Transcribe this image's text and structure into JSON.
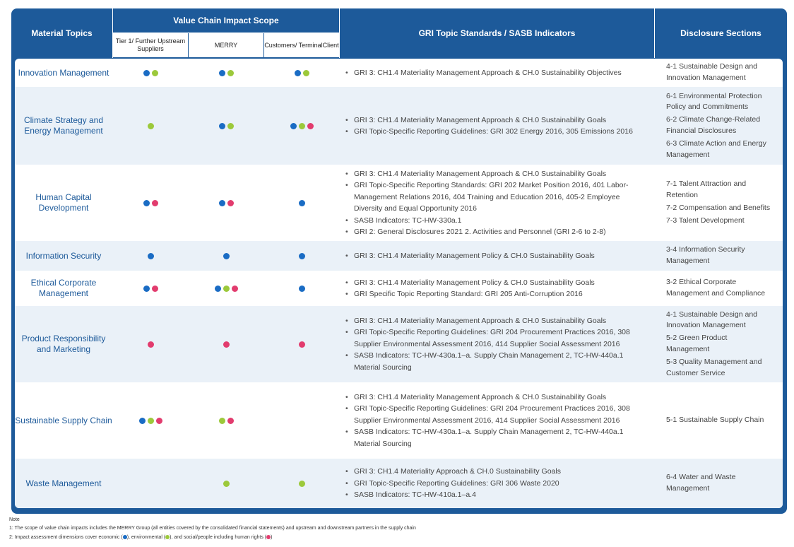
{
  "header": {
    "material_topics": "Material Topics",
    "value_chain": "Value Chain Impact Scope",
    "col_upstream": "Tier 1/ Further Upstream Suppliers",
    "col_merry": "MERRY",
    "col_customers": "Customers/ TerminalClient",
    "gri": "GRI Topic Standards / SASB Indicators",
    "disclosure": "Disclosure Sections"
  },
  "colors": {
    "blue": "#1a6cc4",
    "green": "#9cc93b",
    "red": "#e23c6e",
    "frame": "#1d5a9a"
  },
  "rows": [
    {
      "topic": "Innovation Management",
      "upstream": [
        "blue",
        "green"
      ],
      "merry": [
        "blue",
        "green"
      ],
      "customers": [
        "blue",
        "green"
      ],
      "gri": [
        "GRI 3: CH1.4 Materiality Management Approach & CH.0 Sustainability Objectives"
      ],
      "disclosure": [
        "4-1 Sustainable Design and Innovation Management"
      ]
    },
    {
      "topic": "Climate Strategy and Energy Management",
      "upstream": [
        "green"
      ],
      "merry": [
        "blue",
        "green"
      ],
      "customers": [
        "blue",
        "green",
        "red"
      ],
      "gri": [
        "GRI 3: CH1.4 Materiality Management Approach & CH.0 Sustainability Goals",
        "GRI Topic-Specific Reporting Guidelines: GRI 302 Energy 2016, 305 Emissions 2016"
      ],
      "disclosure": [
        "6-1 Environmental Protection Policy and Commitments",
        "6-2 Climate Change-Related Financial Disclosures",
        "6-3 Climate Action and Energy Management"
      ]
    },
    {
      "topic": "Human Capital Development",
      "upstream": [
        "blue",
        "red"
      ],
      "merry": [
        "blue",
        "red"
      ],
      "customers": [
        "blue"
      ],
      "gri": [
        "GRI 3: CH1.4 Materiality Management Approach & CH.0 Sustainability Goals",
        "GRI Topic-Specific Reporting Standards: GRI 202 Market Position 2016, 401 Labor-Management Relations 2016, 404 Training and Education 2016, 405-2 Employee Diversity and Equal Opportunity 2016",
        "SASB Indicators: TC-HW-330a.1",
        "GRI 2: General Disclosures 2021 2. Activities and Personnel (GRI 2-6 to 2-8)"
      ],
      "disclosure": [
        "7-1 Talent Attraction and Retention",
        "7-2 Compensation and Benefits",
        "7-3 Talent Development"
      ]
    },
    {
      "topic": "Information Security",
      "upstream": [
        "blue"
      ],
      "merry": [
        "blue"
      ],
      "customers": [
        "blue"
      ],
      "gri": [
        "GRI 3: CH1.4 Materiality Management Policy & CH.0 Sustainability Goals"
      ],
      "disclosure": [
        "3-4 Information Security Management"
      ]
    },
    {
      "topic": "Ethical Corporate Management",
      "upstream": [
        "blue",
        "red"
      ],
      "merry": [
        "blue",
        "green",
        "red"
      ],
      "customers": [
        "blue"
      ],
      "gri": [
        "GRI 3: CH1.4 Materiality Management Policy & CH.0 Sustainability Goals",
        "GRI Specific Topic Reporting Standard: GRI 205 Anti-Corruption 2016"
      ],
      "disclosure": [
        "3-2 Ethical Corporate Management and Compliance"
      ]
    },
    {
      "topic": "Product Responsibility and Marketing",
      "upstream": [
        "red"
      ],
      "merry": [
        "red"
      ],
      "customers": [
        "red"
      ],
      "gri": [
        "GRI 3: CH1.4 Materiality Management Approach & CH.0 Sustainability Goals",
        "GRI Topic-Specific Reporting Guidelines: GRI 204 Procurement Practices 2016, 308 Supplier Environmental Assessment 2016, 414 Supplier Social Assessment 2016",
        "SASB Indicators: TC-HW-430a.1–a. Supply Chain Management 2, TC-HW-440a.1 Material Sourcing"
      ],
      "disclosure": [
        "4-1 Sustainable Design and Innovation Management",
        "5-2 Green Product Management",
        "5-3 Quality Management and Customer Service"
      ]
    },
    {
      "topic": "Sustainable Supply Chain",
      "upstream": [
        "blue",
        "green",
        "red"
      ],
      "merry": [
        "green",
        "red"
      ],
      "customers": [],
      "gri": [
        "GRI 3: CH1.4 Materiality Management Approach & CH.0 Sustainability Goals",
        "GRI Topic-Specific Reporting Guidelines: GRI 204 Procurement Practices 2016, 308 Supplier Environmental Assessment 2016, 414 Supplier Social Assessment 2016",
        "SASB Indicators: TC-HW-430a.1–a. Supply Chain Management 2, TC-HW-440a.1 Material Sourcing"
      ],
      "disclosure": [
        "5-1 Sustainable Supply Chain"
      ]
    },
    {
      "topic": "Waste Management",
      "upstream": [],
      "merry": [
        "green"
      ],
      "customers": [
        "green"
      ],
      "gri": [
        "GRI 3: CH1.4 Materiality Approach & CH.0 Sustainability Goals",
        "GRI Topic-Specific Reporting Guidelines: GRI 306 Waste 2020",
        "SASB Indicators: TC-HW-410a.1–a.4"
      ],
      "disclosure": [
        "6-4 Water and Waste Management"
      ]
    }
  ],
  "notes": {
    "title": "Note",
    "n1": "1: The scope of value chain impacts includes the MERRY Group (all entities covered by the consolidated financial statements) and upstream and downstream partners in the supply chain",
    "n2_a": "2: Impact assessment dimensions cover economic (",
    "n2_b": "), environmental (",
    "n2_c": "), and social/people including human rights (",
    "n2_d": ")"
  }
}
